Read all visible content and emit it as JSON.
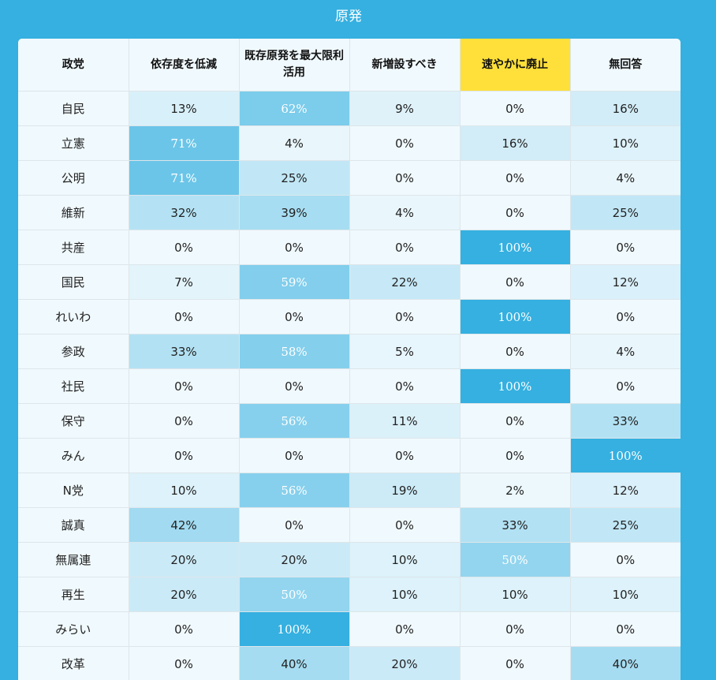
{
  "title": "原発",
  "chart_data": {
    "type": "heatmap",
    "title": "原発",
    "corner_label": "政党",
    "columns": [
      "依存度を低減",
      "既存原発を最大限利活用",
      "新増設すべき",
      "速やかに廃止",
      "無回答"
    ],
    "highlighted_column": "速やかに廃止",
    "highlight_color": "#ffe03a",
    "unit": "%",
    "rows": [
      {
        "party": "自民",
        "values": [
          13,
          62,
          9,
          0,
          16
        ]
      },
      {
        "party": "立憲",
        "values": [
          71,
          4,
          0,
          16,
          10
        ]
      },
      {
        "party": "公明",
        "values": [
          71,
          25,
          0,
          0,
          4
        ]
      },
      {
        "party": "維新",
        "values": [
          32,
          39,
          4,
          0,
          25
        ]
      },
      {
        "party": "共産",
        "values": [
          0,
          0,
          0,
          100,
          0
        ]
      },
      {
        "party": "国民",
        "values": [
          7,
          59,
          22,
          0,
          12
        ]
      },
      {
        "party": "れいわ",
        "values": [
          0,
          0,
          0,
          100,
          0
        ]
      },
      {
        "party": "参政",
        "values": [
          33,
          58,
          5,
          0,
          4
        ]
      },
      {
        "party": "社民",
        "values": [
          0,
          0,
          0,
          100,
          0
        ]
      },
      {
        "party": "保守",
        "values": [
          0,
          56,
          11,
          0,
          33
        ]
      },
      {
        "party": "みん",
        "values": [
          0,
          0,
          0,
          0,
          100
        ]
      },
      {
        "party": "N党",
        "values": [
          10,
          56,
          19,
          2,
          12
        ]
      },
      {
        "party": "誠真",
        "values": [
          42,
          0,
          0,
          33,
          25
        ]
      },
      {
        "party": "無属連",
        "values": [
          20,
          20,
          10,
          50,
          0
        ]
      },
      {
        "party": "再生",
        "values": [
          20,
          50,
          10,
          10,
          10
        ]
      },
      {
        "party": "みらい",
        "values": [
          0,
          100,
          0,
          0,
          0
        ]
      },
      {
        "party": "改革",
        "values": [
          0,
          40,
          20,
          0,
          40
        ]
      }
    ],
    "color_scale": {
      "low": "#f0f9fd",
      "high": "#35b0e0"
    }
  }
}
